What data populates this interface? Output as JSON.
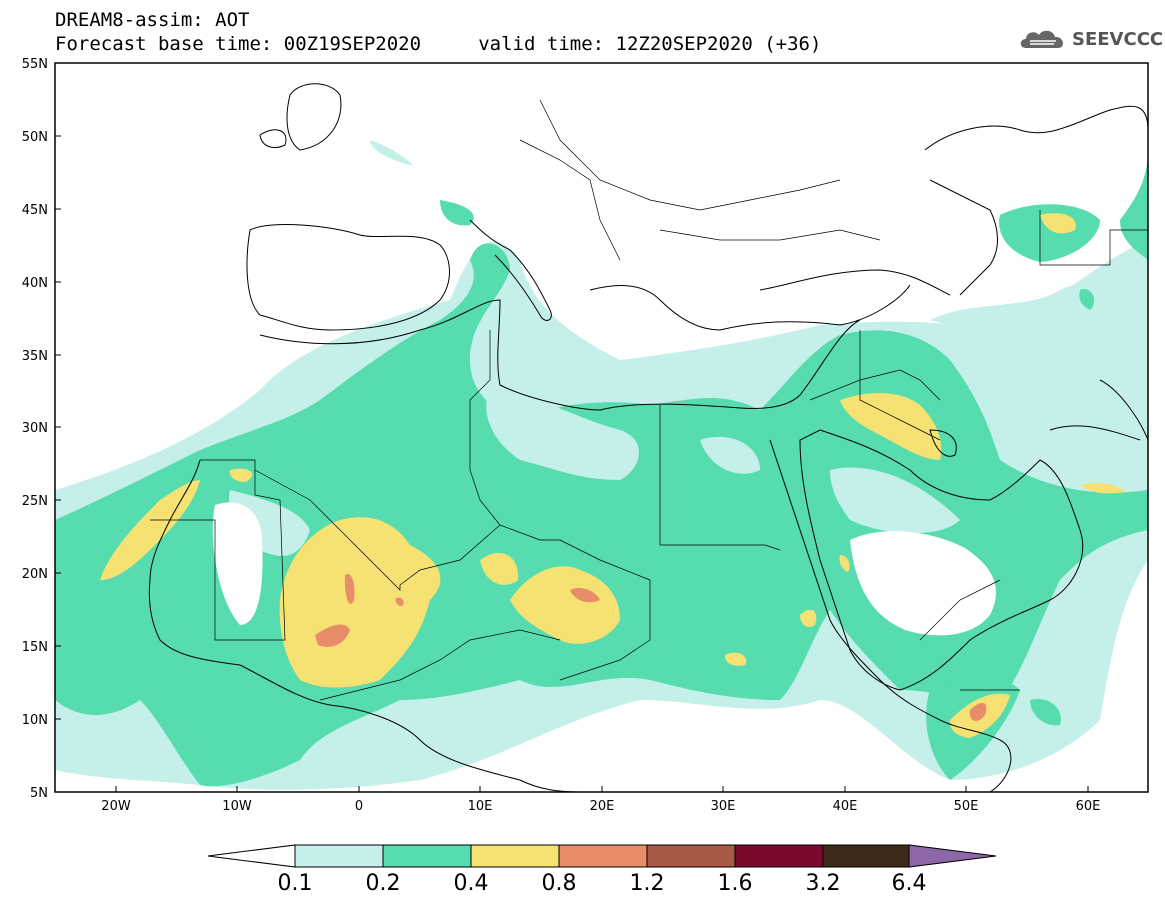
{
  "header": {
    "title_line1": "DREAM8-assim: AOT",
    "title_line2": "Forecast base time: 00Z19SEP2020     valid time: 12Z20SEP2020 (+36)"
  },
  "logo": {
    "text": "SEEVCCC",
    "icon": "cloud-icon"
  },
  "map": {
    "lat_labels": [
      "55N",
      "50N",
      "45N",
      "40N",
      "35N",
      "30N",
      "25N",
      "20N",
      "15N",
      "10N",
      "5N"
    ],
    "lon_labels": [
      "20W",
      "10W",
      "0",
      "10E",
      "20E",
      "30E",
      "40E",
      "50E",
      "60E"
    ],
    "lon_range": [
      -25,
      65
    ],
    "lat_range": [
      5,
      55
    ]
  },
  "colorbar": {
    "labels": [
      "0.1",
      "0.2",
      "0.4",
      "0.8",
      "1.2",
      "1.6",
      "3.2",
      "6.4"
    ],
    "colors": [
      "#ffffff",
      "#c5f0ea",
      "#56dcae",
      "#f5e273",
      "#e88d6a",
      "#a85a46",
      "#7a0a2a",
      "#3e2a1a",
      "#8e67a8"
    ]
  },
  "fields": {
    "colors": {
      "light": "#c5f0ea",
      "green": "#56dcae",
      "yellow": "#f5e273",
      "orange": "#e88d6a"
    }
  }
}
